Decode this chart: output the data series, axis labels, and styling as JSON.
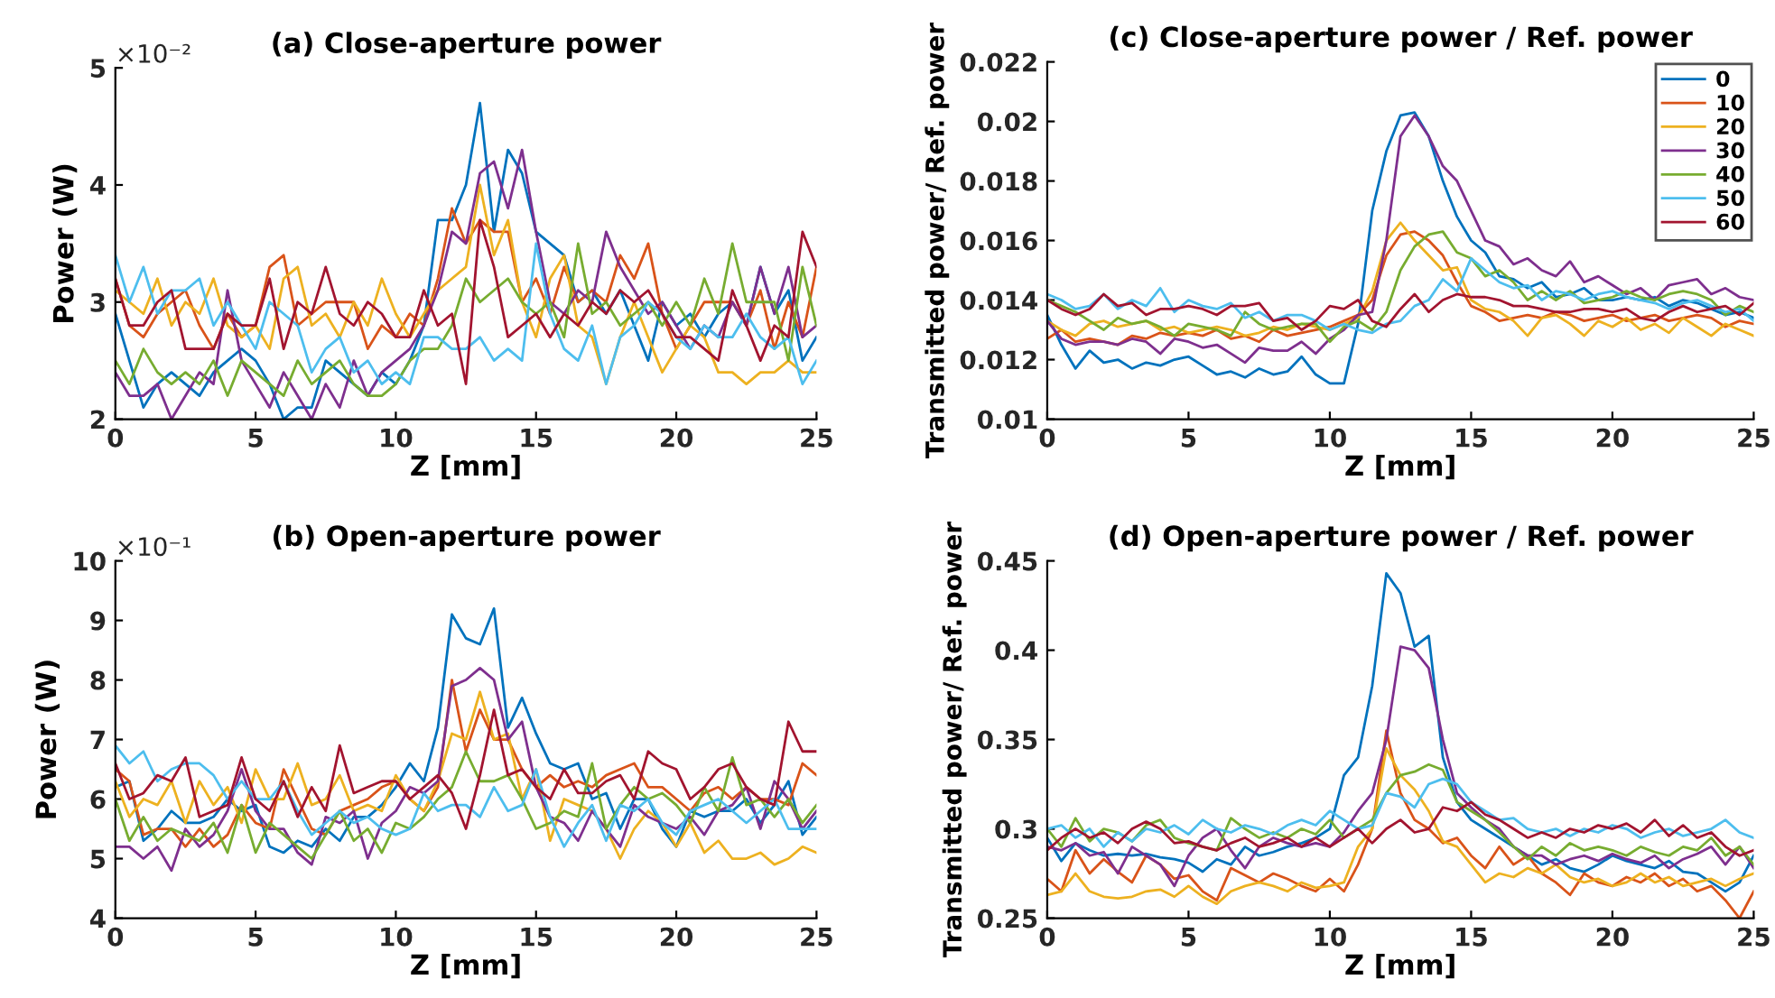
{
  "chart_data": [
    {
      "type": "line",
      "title": "(a) Close-aperture power",
      "xlabel": "Z [mm]",
      "ylabel": "Power (W)",
      "annotations": [
        "×10⁻²"
      ],
      "x": [
        0,
        0.5,
        1,
        1.5,
        2,
        2.5,
        3,
        3.5,
        4,
        4.5,
        5,
        5.5,
        6,
        6.5,
        7,
        7.5,
        8,
        8.5,
        9,
        9.5,
        10,
        10.5,
        11,
        11.5,
        12,
        12.5,
        13,
        13.5,
        14,
        14.5,
        15,
        15.5,
        16,
        16.5,
        17,
        17.5,
        18,
        18.5,
        19,
        19.5,
        20,
        20.5,
        21,
        21.5,
        22,
        22.5,
        23,
        23.5,
        24,
        24.5,
        25
      ],
      "xlim": [
        0,
        25
      ],
      "xticks": [
        0,
        5,
        10,
        15,
        20,
        25
      ],
      "ylim": [
        2,
        5
      ],
      "yticks": [
        2,
        3,
        4,
        5
      ],
      "grid": false,
      "legend": false,
      "series": [
        {
          "color": "#0072bd",
          "values": [
            2.9,
            2.5,
            2.1,
            2.3,
            2.4,
            2.3,
            2.2,
            2.4,
            2.5,
            2.6,
            2.5,
            2.3,
            2.0,
            2.1,
            2.1,
            2.5,
            2.4,
            2.3,
            2.2,
            2.4,
            2.3,
            2.5,
            2.8,
            3.7,
            3.7,
            4.0,
            4.7,
            3.6,
            4.3,
            4.1,
            3.6,
            3.5,
            3.4,
            3.0,
            3.1,
            2.9,
            3.1,
            2.8,
            2.5,
            3.0,
            2.8,
            2.9,
            2.7,
            2.9,
            3.0,
            2.8,
            3.3,
            2.9,
            3.1,
            2.5,
            2.7
          ]
        },
        {
          "color": "#d95319",
          "values": [
            3.2,
            2.8,
            2.7,
            2.9,
            3.0,
            3.1,
            2.8,
            2.6,
            2.9,
            2.7,
            2.8,
            3.3,
            3.4,
            2.8,
            2.9,
            3.0,
            3.0,
            3.0,
            2.6,
            2.8,
            2.7,
            2.9,
            2.8,
            3.2,
            3.8,
            3.5,
            3.7,
            3.6,
            3.6,
            3.0,
            3.2,
            2.9,
            3.3,
            3.0,
            3.1,
            3.0,
            3.4,
            3.2,
            3.5,
            2.9,
            2.6,
            2.8,
            3.0,
            3.0,
            3.0,
            2.8,
            3.1,
            2.6,
            3.0,
            2.7,
            3.3
          ]
        },
        {
          "color": "#edb120",
          "values": [
            3.1,
            3.0,
            2.9,
            3.2,
            2.8,
            3.0,
            2.9,
            3.2,
            2.8,
            2.7,
            2.8,
            2.6,
            3.2,
            3.3,
            2.8,
            2.9,
            2.7,
            3.0,
            2.8,
            3.2,
            2.9,
            2.7,
            2.9,
            3.1,
            3.2,
            3.3,
            4.0,
            3.4,
            3.7,
            3.0,
            2.7,
            3.2,
            3.4,
            2.8,
            2.7,
            2.3,
            2.7,
            3.0,
            2.7,
            2.4,
            2.6,
            2.8,
            2.7,
            2.4,
            2.4,
            2.3,
            2.4,
            2.4,
            2.5,
            2.4,
            2.4
          ]
        },
        {
          "color": "#7e2f8e",
          "values": [
            2.4,
            2.2,
            2.2,
            2.3,
            2.0,
            2.2,
            2.4,
            2.3,
            3.1,
            2.5,
            2.3,
            2.1,
            2.4,
            2.2,
            2.0,
            2.3,
            2.1,
            2.5,
            2.2,
            2.4,
            2.5,
            2.6,
            2.8,
            3.1,
            3.6,
            3.5,
            4.1,
            4.2,
            3.8,
            4.3,
            3.6,
            3.0,
            2.9,
            3.1,
            3.0,
            3.6,
            3.3,
            3.1,
            2.9,
            3.0,
            2.8,
            2.6,
            2.8,
            2.7,
            3.0,
            2.8,
            3.3,
            2.9,
            3.3,
            2.7,
            2.8
          ]
        },
        {
          "color": "#77ac30",
          "values": [
            2.5,
            2.3,
            2.6,
            2.4,
            2.3,
            2.4,
            2.3,
            2.5,
            2.2,
            2.5,
            2.4,
            2.3,
            2.2,
            2.5,
            2.3,
            2.4,
            2.5,
            2.3,
            2.2,
            2.2,
            2.3,
            2.5,
            2.6,
            2.6,
            2.8,
            3.2,
            3.0,
            3.1,
            3.2,
            3.0,
            2.9,
            3.0,
            2.7,
            3.5,
            2.9,
            3.0,
            2.8,
            2.9,
            3.0,
            2.8,
            3.0,
            2.8,
            3.2,
            2.9,
            3.5,
            3.0,
            3.0,
            3.0,
            2.5,
            3.3,
            2.8
          ]
        },
        {
          "color": "#4dbeee",
          "values": [
            3.4,
            3.0,
            3.3,
            2.9,
            3.1,
            3.1,
            3.2,
            2.8,
            3.0,
            2.8,
            2.6,
            3.0,
            2.9,
            2.8,
            2.4,
            2.6,
            2.7,
            2.4,
            2.5,
            2.3,
            2.4,
            2.3,
            2.7,
            2.7,
            2.6,
            2.6,
            2.7,
            2.5,
            2.6,
            2.5,
            3.5,
            2.9,
            2.6,
            2.5,
            2.8,
            2.3,
            2.7,
            2.8,
            3.0,
            2.9,
            2.7,
            2.6,
            2.8,
            2.7,
            2.7,
            2.9,
            2.7,
            2.6,
            2.7,
            2.3,
            2.5
          ]
        },
        {
          "color": "#a2142f",
          "values": [
            3.2,
            2.8,
            2.8,
            3.0,
            3.1,
            2.6,
            2.6,
            2.6,
            2.9,
            2.8,
            2.8,
            3.2,
            2.6,
            3.0,
            2.9,
            3.3,
            2.9,
            2.8,
            3.0,
            2.9,
            2.7,
            2.7,
            3.1,
            2.8,
            2.9,
            2.3,
            3.7,
            3.3,
            2.7,
            2.8,
            2.9,
            2.7,
            2.9,
            2.8,
            3.0,
            2.9,
            3.1,
            3.0,
            3.1,
            2.9,
            2.7,
            2.7,
            2.6,
            2.5,
            3.1,
            2.8,
            2.5,
            2.8,
            2.7,
            3.6,
            3.3
          ]
        }
      ]
    },
    {
      "type": "line",
      "title": "(c) Close-aperture power / Ref. power",
      "xlabel": "Z [mm]",
      "ylabel": "Transmitted power/ Ref. power",
      "x": [
        0,
        0.5,
        1,
        1.5,
        2,
        2.5,
        3,
        3.5,
        4,
        4.5,
        5,
        5.5,
        6,
        6.5,
        7,
        7.5,
        8,
        8.5,
        9,
        9.5,
        10,
        10.5,
        11,
        11.5,
        12,
        12.5,
        13,
        13.5,
        14,
        14.5,
        15,
        15.5,
        16,
        16.5,
        17,
        17.5,
        18,
        18.5,
        19,
        19.5,
        20,
        20.5,
        21,
        21.5,
        22,
        22.5,
        23,
        23.5,
        24,
        24.5,
        25
      ],
      "xlim": [
        0,
        25
      ],
      "xticks": [
        0,
        5,
        10,
        15,
        20,
        25
      ],
      "ylim": [
        0.01,
        0.022
      ],
      "yticks": [
        0.01,
        0.012,
        0.014,
        0.016,
        0.018,
        0.02,
        0.022
      ],
      "grid": false,
      "legend": "top right",
      "series": [
        {
          "name": "0",
          "color": "#0072bd",
          "values": [
            0.0135,
            0.0125,
            0.0117,
            0.0123,
            0.0119,
            0.012,
            0.0117,
            0.0119,
            0.0118,
            0.012,
            0.0121,
            0.0118,
            0.0115,
            0.0116,
            0.0114,
            0.0117,
            0.0115,
            0.0116,
            0.0121,
            0.0115,
            0.0112,
            0.0112,
            0.0132,
            0.017,
            0.019,
            0.0202,
            0.0203,
            0.0195,
            0.018,
            0.0168,
            0.016,
            0.0156,
            0.0148,
            0.0147,
            0.0144,
            0.0146,
            0.0141,
            0.0142,
            0.0144,
            0.014,
            0.014,
            0.0141,
            0.014,
            0.0141,
            0.0138,
            0.014,
            0.0139,
            0.0137,
            0.0135,
            0.0136,
            0.0134
          ]
        },
        {
          "name": "10",
          "color": "#d95319",
          "values": [
            0.0127,
            0.013,
            0.0126,
            0.0127,
            0.0126,
            0.0125,
            0.0128,
            0.0127,
            0.0129,
            0.0128,
            0.0129,
            0.0128,
            0.013,
            0.0127,
            0.0128,
            0.0126,
            0.013,
            0.0128,
            0.0129,
            0.013,
            0.0131,
            0.0133,
            0.0135,
            0.014,
            0.0155,
            0.0162,
            0.0163,
            0.016,
            0.0155,
            0.0146,
            0.0138,
            0.0136,
            0.0133,
            0.0134,
            0.0135,
            0.0134,
            0.0136,
            0.0135,
            0.0133,
            0.0134,
            0.0135,
            0.0133,
            0.0134,
            0.0135,
            0.0133,
            0.0134,
            0.0135,
            0.0134,
            0.0131,
            0.0133,
            0.0132
          ]
        },
        {
          "name": "20",
          "color": "#edb120",
          "values": [
            0.0133,
            0.013,
            0.0128,
            0.0132,
            0.0133,
            0.0131,
            0.0132,
            0.0133,
            0.013,
            0.0131,
            0.0129,
            0.013,
            0.0131,
            0.013,
            0.0128,
            0.0129,
            0.0131,
            0.013,
            0.0132,
            0.0131,
            0.013,
            0.0132,
            0.0134,
            0.0143,
            0.016,
            0.0166,
            0.016,
            0.0155,
            0.015,
            0.0151,
            0.014,
            0.0137,
            0.0136,
            0.0133,
            0.0128,
            0.0134,
            0.0135,
            0.0132,
            0.0128,
            0.0133,
            0.0131,
            0.0134,
            0.013,
            0.0132,
            0.0129,
            0.0134,
            0.0131,
            0.0128,
            0.0132,
            0.013,
            0.0128
          ]
        },
        {
          "name": "30",
          "color": "#7e2f8e",
          "values": [
            0.0133,
            0.0127,
            0.0125,
            0.0126,
            0.0126,
            0.0125,
            0.0127,
            0.0126,
            0.0122,
            0.0127,
            0.0126,
            0.0124,
            0.0125,
            0.0122,
            0.0119,
            0.0124,
            0.0123,
            0.0123,
            0.0126,
            0.0122,
            0.0127,
            0.013,
            0.0135,
            0.0136,
            0.016,
            0.0195,
            0.0202,
            0.0195,
            0.0185,
            0.018,
            0.017,
            0.016,
            0.0158,
            0.0152,
            0.0154,
            0.015,
            0.0148,
            0.0153,
            0.0146,
            0.0148,
            0.0145,
            0.0142,
            0.0144,
            0.014,
            0.0145,
            0.0146,
            0.0147,
            0.0142,
            0.0144,
            0.0141,
            0.014
          ]
        },
        {
          "name": "40",
          "color": "#77ac30",
          "values": [
            0.014,
            0.0138,
            0.0136,
            0.0133,
            0.013,
            0.0134,
            0.0132,
            0.0133,
            0.0131,
            0.0128,
            0.0132,
            0.0131,
            0.013,
            0.0128,
            0.0136,
            0.0132,
            0.013,
            0.0131,
            0.0132,
            0.0132,
            0.0126,
            0.0131,
            0.0133,
            0.013,
            0.0136,
            0.015,
            0.0158,
            0.0162,
            0.0163,
            0.0156,
            0.0154,
            0.0148,
            0.015,
            0.0146,
            0.014,
            0.0143,
            0.014,
            0.0143,
            0.0139,
            0.014,
            0.0141,
            0.0143,
            0.0141,
            0.014,
            0.0142,
            0.0143,
            0.0142,
            0.014,
            0.0135,
            0.0138,
            0.0136
          ]
        },
        {
          "name": "50",
          "color": "#4dbeee",
          "values": [
            0.0142,
            0.014,
            0.0137,
            0.0138,
            0.0142,
            0.0137,
            0.014,
            0.0138,
            0.0144,
            0.0136,
            0.014,
            0.0138,
            0.0137,
            0.0139,
            0.0134,
            0.0136,
            0.0133,
            0.0135,
            0.0135,
            0.0133,
            0.013,
            0.0132,
            0.013,
            0.0129,
            0.0132,
            0.0133,
            0.0138,
            0.014,
            0.0147,
            0.0143,
            0.0154,
            0.015,
            0.0146,
            0.0144,
            0.0145,
            0.014,
            0.0143,
            0.0142,
            0.014,
            0.0142,
            0.0143,
            0.0141,
            0.014,
            0.0139,
            0.0137,
            0.0139,
            0.014,
            0.0138,
            0.0136,
            0.0137,
            0.0133
          ]
        },
        {
          "name": "60",
          "color": "#a2142f",
          "values": [
            0.014,
            0.0137,
            0.0135,
            0.0137,
            0.0142,
            0.0138,
            0.0139,
            0.0135,
            0.0137,
            0.0137,
            0.0138,
            0.0137,
            0.0135,
            0.0138,
            0.0138,
            0.0139,
            0.0133,
            0.0134,
            0.013,
            0.0133,
            0.0138,
            0.0137,
            0.014,
            0.0133,
            0.0131,
            0.0137,
            0.0142,
            0.0136,
            0.014,
            0.0142,
            0.0141,
            0.0141,
            0.014,
            0.0138,
            0.0138,
            0.0137,
            0.0136,
            0.0136,
            0.0137,
            0.0137,
            0.0136,
            0.0137,
            0.0134,
            0.0133,
            0.0136,
            0.0138,
            0.0136,
            0.0137,
            0.0138,
            0.0135,
            0.0139
          ]
        }
      ]
    },
    {
      "type": "line",
      "title": "(b) Open-aperture power",
      "xlabel": "Z [mm]",
      "ylabel": "Power (W)",
      "annotations": [
        "×10⁻¹"
      ],
      "x": [
        0,
        0.5,
        1,
        1.5,
        2,
        2.5,
        3,
        3.5,
        4,
        4.5,
        5,
        5.5,
        6,
        6.5,
        7,
        7.5,
        8,
        8.5,
        9,
        9.5,
        10,
        10.5,
        11,
        11.5,
        12,
        12.5,
        13,
        13.5,
        14,
        14.5,
        15,
        15.5,
        16,
        16.5,
        17,
        17.5,
        18,
        18.5,
        19,
        19.5,
        20,
        20.5,
        21,
        21.5,
        22,
        22.5,
        23,
        23.5,
        24,
        24.5,
        25
      ],
      "xlim": [
        0,
        25
      ],
      "xticks": [
        0,
        5,
        10,
        15,
        20,
        25
      ],
      "ylim": [
        4,
        10
      ],
      "yticks": [
        4,
        5,
        6,
        7,
        8,
        9,
        10
      ],
      "grid": false,
      "legend": false,
      "series": [
        {
          "color": "#0072bd",
          "values": [
            6.2,
            6.3,
            5.3,
            5.5,
            5.8,
            5.6,
            5.6,
            5.7,
            6.0,
            5.8,
            5.9,
            5.2,
            5.1,
            5.3,
            5.2,
            5.5,
            5.3,
            5.7,
            5.7,
            5.9,
            6.2,
            6.6,
            6.3,
            7.2,
            9.1,
            8.7,
            8.6,
            9.2,
            7.2,
            7.7,
            7.1,
            6.6,
            6.5,
            6.6,
            6.0,
            6.1,
            5.5,
            6.0,
            6.0,
            5.5,
            5.2,
            5.8,
            5.7,
            5.8,
            5.8,
            6.0,
            5.6,
            5.9,
            6.3,
            5.4,
            5.7
          ]
        },
        {
          "color": "#d95319",
          "values": [
            6.5,
            6.3,
            5.4,
            5.5,
            5.5,
            5.2,
            5.5,
            5.2,
            5.4,
            5.9,
            5.6,
            5.5,
            6.5,
            6.0,
            5.5,
            5.4,
            5.8,
            5.9,
            6.0,
            6.2,
            6.3,
            6.0,
            5.8,
            6.2,
            8.0,
            6.8,
            7.5,
            7.0,
            7.0,
            6.5,
            6.2,
            6.4,
            6.2,
            6.3,
            6.2,
            6.4,
            6.5,
            6.6,
            6.2,
            6.2,
            6.0,
            5.8,
            6.1,
            6.2,
            6.0,
            6.2,
            6.0,
            6.0,
            5.9,
            6.6,
            6.4
          ]
        },
        {
          "color": "#edb120",
          "values": [
            6.3,
            5.7,
            6.0,
            5.9,
            6.3,
            5.6,
            6.3,
            5.9,
            6.2,
            5.6,
            6.5,
            6.0,
            6.0,
            6.6,
            5.9,
            6.0,
            6.4,
            5.8,
            5.9,
            5.8,
            6.4,
            6.0,
            5.8,
            6.3,
            7.1,
            7.0,
            7.8,
            7.0,
            7.1,
            6.0,
            6.5,
            5.3,
            6.0,
            5.9,
            5.8,
            5.5,
            5.0,
            5.5,
            5.8,
            5.6,
            5.2,
            5.6,
            5.1,
            5.3,
            5.0,
            5.0,
            5.1,
            4.9,
            5.0,
            5.2,
            5.1
          ]
        },
        {
          "color": "#7e2f8e",
          "values": [
            5.2,
            5.2,
            5.0,
            5.2,
            4.8,
            5.5,
            5.2,
            5.4,
            5.8,
            6.5,
            5.8,
            5.5,
            5.5,
            5.1,
            4.9,
            5.7,
            5.6,
            5.8,
            5.0,
            5.6,
            5.8,
            6.2,
            6.1,
            6.3,
            7.9,
            8.0,
            8.2,
            8.0,
            7.0,
            7.3,
            6.2,
            5.7,
            5.6,
            5.3,
            5.8,
            5.5,
            5.2,
            5.9,
            5.7,
            5.6,
            5.5,
            5.7,
            5.4,
            5.8,
            5.9,
            6.2,
            5.5,
            6.3,
            6.0,
            5.5,
            5.8
          ]
        },
        {
          "color": "#77ac30",
          "values": [
            6.0,
            5.3,
            5.7,
            5.3,
            5.5,
            5.4,
            5.3,
            5.6,
            5.1,
            5.9,
            5.1,
            5.6,
            5.4,
            5.2,
            5.0,
            5.4,
            5.8,
            5.3,
            5.5,
            5.1,
            5.6,
            5.5,
            5.7,
            6.0,
            6.2,
            6.8,
            6.3,
            6.3,
            6.4,
            6.0,
            5.5,
            5.6,
            5.8,
            5.7,
            6.6,
            5.5,
            5.9,
            6.2,
            6.0,
            6.1,
            5.9,
            5.6,
            6.2,
            5.8,
            6.7,
            5.9,
            6.0,
            5.7,
            6.0,
            5.6,
            5.9
          ]
        },
        {
          "color": "#4dbeee",
          "values": [
            6.9,
            6.6,
            6.8,
            6.3,
            6.5,
            6.6,
            6.6,
            6.4,
            6.0,
            6.3,
            6.0,
            6.0,
            6.3,
            5.8,
            5.4,
            5.6,
            5.8,
            5.6,
            5.7,
            5.5,
            5.4,
            5.5,
            6.1,
            5.8,
            5.9,
            5.9,
            5.7,
            6.2,
            5.8,
            5.9,
            6.5,
            5.7,
            5.2,
            5.6,
            5.9,
            5.3,
            5.9,
            5.8,
            6.0,
            5.6,
            5.4,
            5.8,
            5.9,
            6.0,
            5.8,
            5.6,
            5.8,
            6.0,
            5.5,
            5.5,
            5.5
          ]
        },
        {
          "color": "#a2142f",
          "values": [
            6.6,
            6.0,
            6.1,
            6.4,
            6.3,
            6.7,
            5.7,
            5.8,
            5.9,
            6.7,
            6.0,
            5.8,
            6.3,
            5.7,
            6.2,
            5.8,
            6.9,
            6.1,
            6.2,
            6.3,
            6.3,
            6.0,
            6.2,
            6.4,
            6.1,
            5.5,
            6.4,
            7.5,
            6.4,
            6.5,
            6.2,
            6.0,
            6.5,
            6.1,
            6.1,
            6.3,
            6.4,
            6.0,
            6.8,
            6.6,
            6.5,
            6.0,
            6.2,
            6.5,
            6.6,
            6.2,
            6.0,
            5.9,
            7.3,
            6.8,
            6.8
          ]
        }
      ]
    },
    {
      "type": "line",
      "title": "(d) Open-aperture power / Ref. power",
      "xlabel": "Z [mm]",
      "ylabel": "Transmitted power/ Ref. power",
      "x": [
        0,
        0.5,
        1,
        1.5,
        2,
        2.5,
        3,
        3.5,
        4,
        4.5,
        5,
        5.5,
        6,
        6.5,
        7,
        7.5,
        8,
        8.5,
        9,
        9.5,
        10,
        10.5,
        11,
        11.5,
        12,
        12.5,
        13,
        13.5,
        14,
        14.5,
        15,
        15.5,
        16,
        16.5,
        17,
        17.5,
        18,
        18.5,
        19,
        19.5,
        20,
        20.5,
        21,
        21.5,
        22,
        22.5,
        23,
        23.5,
        24,
        24.5,
        25
      ],
      "xlim": [
        0,
        25
      ],
      "xticks": [
        0,
        5,
        10,
        15,
        20,
        25
      ],
      "ylim": [
        0.25,
        0.45
      ],
      "yticks": [
        0.25,
        0.3,
        0.35,
        0.4,
        0.45
      ],
      "grid": false,
      "legend": false,
      "series": [
        {
          "color": "#0072bd",
          "values": [
            0.295,
            0.282,
            0.292,
            0.288,
            0.285,
            0.286,
            0.285,
            0.286,
            0.284,
            0.283,
            0.281,
            0.276,
            0.283,
            0.28,
            0.29,
            0.285,
            0.287,
            0.29,
            0.292,
            0.295,
            0.3,
            0.33,
            0.34,
            0.38,
            0.443,
            0.432,
            0.402,
            0.408,
            0.34,
            0.315,
            0.305,
            0.3,
            0.295,
            0.29,
            0.285,
            0.28,
            0.283,
            0.278,
            0.276,
            0.28,
            0.285,
            0.282,
            0.28,
            0.278,
            0.282,
            0.276,
            0.275,
            0.27,
            0.265,
            0.27,
            0.285
          ]
        },
        {
          "color": "#d95319",
          "values": [
            0.272,
            0.265,
            0.288,
            0.275,
            0.283,
            0.276,
            0.27,
            0.285,
            0.28,
            0.272,
            0.274,
            0.265,
            0.26,
            0.278,
            0.274,
            0.27,
            0.275,
            0.272,
            0.268,
            0.265,
            0.272,
            0.265,
            0.28,
            0.3,
            0.355,
            0.32,
            0.305,
            0.3,
            0.292,
            0.295,
            0.285,
            0.278,
            0.29,
            0.28,
            0.285,
            0.275,
            0.27,
            0.263,
            0.275,
            0.27,
            0.268,
            0.273,
            0.27,
            0.275,
            0.268,
            0.272,
            0.265,
            0.268,
            0.26,
            0.25,
            0.265
          ]
        },
        {
          "color": "#edb120",
          "values": [
            0.263,
            0.265,
            0.275,
            0.265,
            0.262,
            0.261,
            0.262,
            0.265,
            0.266,
            0.262,
            0.268,
            0.262,
            0.258,
            0.265,
            0.268,
            0.27,
            0.268,
            0.265,
            0.27,
            0.267,
            0.268,
            0.27,
            0.29,
            0.3,
            0.345,
            0.33,
            0.322,
            0.31,
            0.293,
            0.29,
            0.28,
            0.27,
            0.275,
            0.273,
            0.278,
            0.275,
            0.28,
            0.273,
            0.27,
            0.272,
            0.268,
            0.27,
            0.275,
            0.27,
            0.273,
            0.268,
            0.27,
            0.272,
            0.268,
            0.272,
            0.275
          ]
        },
        {
          "color": "#7e2f8e",
          "values": [
            0.29,
            0.288,
            0.292,
            0.285,
            0.287,
            0.275,
            0.29,
            0.285,
            0.28,
            0.268,
            0.285,
            0.295,
            0.3,
            0.288,
            0.278,
            0.29,
            0.295,
            0.292,
            0.29,
            0.292,
            0.29,
            0.298,
            0.31,
            0.32,
            0.35,
            0.402,
            0.4,
            0.39,
            0.35,
            0.32,
            0.312,
            0.305,
            0.3,
            0.29,
            0.285,
            0.285,
            0.28,
            0.283,
            0.285,
            0.282,
            0.286,
            0.283,
            0.281,
            0.285,
            0.278,
            0.283,
            0.286,
            0.29,
            0.28,
            0.29,
            0.278
          ]
        },
        {
          "color": "#77ac30",
          "values": [
            0.3,
            0.29,
            0.306,
            0.293,
            0.3,
            0.298,
            0.293,
            0.302,
            0.305,
            0.295,
            0.292,
            0.29,
            0.288,
            0.306,
            0.3,
            0.295,
            0.298,
            0.295,
            0.3,
            0.297,
            0.305,
            0.295,
            0.3,
            0.305,
            0.32,
            0.33,
            0.332,
            0.336,
            0.333,
            0.315,
            0.31,
            0.305,
            0.298,
            0.29,
            0.283,
            0.29,
            0.285,
            0.292,
            0.288,
            0.29,
            0.288,
            0.285,
            0.29,
            0.287,
            0.285,
            0.29,
            0.288,
            0.295,
            0.285,
            0.29,
            0.28
          ]
        },
        {
          "color": "#4dbeee",
          "values": [
            0.3,
            0.302,
            0.295,
            0.3,
            0.29,
            0.298,
            0.293,
            0.3,
            0.298,
            0.302,
            0.297,
            0.305,
            0.3,
            0.298,
            0.302,
            0.3,
            0.297,
            0.302,
            0.305,
            0.302,
            0.31,
            0.305,
            0.3,
            0.302,
            0.32,
            0.318,
            0.312,
            0.325,
            0.328,
            0.325,
            0.315,
            0.31,
            0.305,
            0.306,
            0.3,
            0.298,
            0.3,
            0.296,
            0.3,
            0.298,
            0.302,
            0.3,
            0.295,
            0.298,
            0.3,
            0.296,
            0.298,
            0.3,
            0.305,
            0.298,
            0.295
          ]
        },
        {
          "color": "#a2142f",
          "values": [
            0.288,
            0.295,
            0.3,
            0.295,
            0.298,
            0.292,
            0.3,
            0.304,
            0.3,
            0.292,
            0.293,
            0.29,
            0.288,
            0.292,
            0.295,
            0.29,
            0.292,
            0.295,
            0.29,
            0.295,
            0.29,
            0.295,
            0.3,
            0.292,
            0.3,
            0.305,
            0.298,
            0.3,
            0.312,
            0.31,
            0.315,
            0.308,
            0.305,
            0.3,
            0.295,
            0.298,
            0.295,
            0.3,
            0.298,
            0.302,
            0.3,
            0.303,
            0.298,
            0.305,
            0.296,
            0.302,
            0.295,
            0.298,
            0.29,
            0.285,
            0.288
          ]
        }
      ]
    }
  ]
}
